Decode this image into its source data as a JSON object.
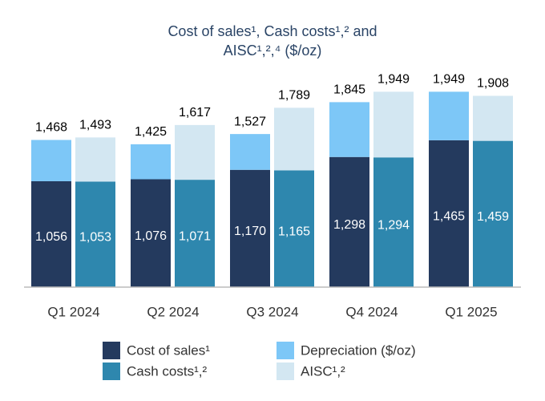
{
  "chart_data": {
    "type": "grouped-stacked-bar",
    "title": [
      "Cost of sales¹, Cash costs¹,² and",
      "AISC¹,²,⁴ ($/oz)"
    ],
    "categories": [
      "Q1 2024",
      "Q2 2024",
      "Q3 2024",
      "Q4 2024",
      "Q1 2025"
    ],
    "ylim": [
      0,
      2000
    ],
    "stacks": [
      {
        "series": [
          {
            "name": "Cost of sales¹",
            "color": "#243a5e",
            "values": [
              1056,
              1076,
              1170,
              1298,
              1465
            ],
            "value_labels": [
              "1,056",
              "1,076",
              "1,170",
              "1,298",
              "1,465"
            ]
          },
          {
            "name": "Depreciation ($/oz)",
            "color": "#7dc7f7",
            "values": [
              412,
              349,
              357,
              547,
              484
            ]
          }
        ],
        "totals": [
          1468,
          1425,
          1527,
          1845,
          1949
        ],
        "total_labels": [
          "1,468",
          "1,425",
          "1,527",
          "1,845",
          "1,949"
        ]
      },
      {
        "series": [
          {
            "name": "Cash costs¹,²",
            "color": "#2e87ae",
            "values": [
              1053,
              1071,
              1165,
              1294,
              1459
            ],
            "value_labels": [
              "1,053",
              "1,071",
              "1,165",
              "1,294",
              "1,459"
            ]
          },
          {
            "name": "AISC¹,²",
            "color": "#d3e7f2",
            "values": [
              440,
              546,
              624,
              655,
              449
            ]
          }
        ],
        "totals": [
          1493,
          1617,
          1789,
          1949,
          1908
        ],
        "total_labels": [
          "1,493",
          "1,617",
          "1,789",
          "1,949",
          "1,908"
        ]
      }
    ]
  }
}
